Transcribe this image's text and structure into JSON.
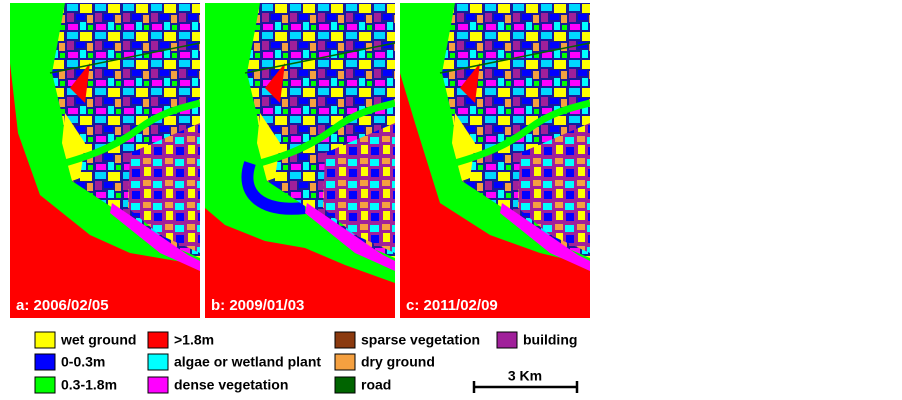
{
  "panels": [
    {
      "label": "a: 2006/02/05"
    },
    {
      "label": "b: 2009/01/03"
    },
    {
      "label": "c: 2011/02/09"
    }
  ],
  "legend": [
    {
      "label": "wet ground",
      "color": "#ffff00"
    },
    {
      "label": "0-0.3m",
      "color": "#0000ff"
    },
    {
      "label": "0.3-1.8m",
      "color": "#00ff00"
    },
    {
      "label": ">1.8m",
      "color": "#ff0000"
    },
    {
      "label": "algae or wetland plant",
      "color": "#00ffff"
    },
    {
      "label": "dense vegetation",
      "color": "#ff00ff"
    },
    {
      "label": "sparse vegetation",
      "color": "#8b3a0f"
    },
    {
      "label": "dry ground",
      "color": "#f5a040"
    },
    {
      "label": "road",
      "color": "#006400"
    },
    {
      "label": "building",
      "color": "#a0209a"
    }
  ],
  "scale_bar": {
    "label": "3 Km"
  }
}
